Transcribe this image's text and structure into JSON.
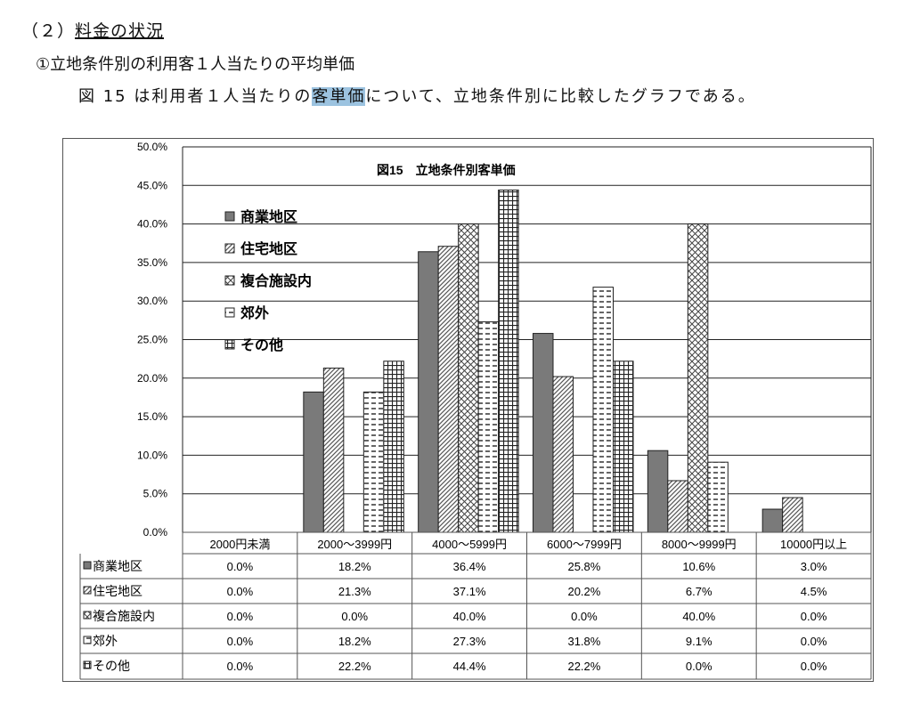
{
  "section_heading": {
    "number": "（２）",
    "title": "料金の状況"
  },
  "subheading": "①立地条件別の利用客１人当たりの平均単価",
  "paragraph": {
    "before": "図 15 は利用者１人当たりの",
    "highlight": "客単価",
    "after": "について、立地条件別に比較したグラフである。"
  },
  "chart_data": {
    "type": "bar",
    "title": "図15　立地条件別客単価",
    "categories": [
      "2000円未満",
      "2000～3999円",
      "4000～5999円",
      "6000～7999円",
      "8000～9999円",
      "10000円以上"
    ],
    "series": [
      {
        "name": "商業地区",
        "pattern": "solid-gray",
        "values": [
          0.0,
          18.2,
          36.4,
          25.8,
          10.6,
          3.0
        ],
        "labels": [
          "0.0%",
          "18.2%",
          "36.4%",
          "25.8%",
          "10.6%",
          "3.0%"
        ]
      },
      {
        "name": "住宅地区",
        "pattern": "diagonal-lines",
        "values": [
          0.0,
          21.3,
          37.1,
          20.2,
          6.7,
          4.5
        ],
        "labels": [
          "0.0%",
          "21.3%",
          "37.1%",
          "20.2%",
          "6.7%",
          "4.5%"
        ]
      },
      {
        "name": "複合施設内",
        "pattern": "crosshatch",
        "values": [
          0.0,
          0.0,
          40.0,
          0.0,
          40.0,
          0.0
        ],
        "labels": [
          "0.0%",
          "0.0%",
          "40.0%",
          "0.0%",
          "40.0%",
          "0.0%"
        ]
      },
      {
        "name": "郊外",
        "pattern": "dashes",
        "values": [
          0.0,
          18.2,
          27.3,
          31.8,
          9.1,
          0.0
        ],
        "labels": [
          "0.0%",
          "18.2%",
          "27.3%",
          "31.8%",
          "9.1%",
          "0.0%"
        ]
      },
      {
        "name": "その他",
        "pattern": "grid",
        "values": [
          0.0,
          22.2,
          44.4,
          22.2,
          0.0,
          0.0
        ],
        "labels": [
          "0.0%",
          "22.2%",
          "44.4%",
          "22.2%",
          "0.0%",
          "0.0%"
        ]
      }
    ],
    "yticks": [
      "0.0%",
      "5.0%",
      "10.0%",
      "15.0%",
      "20.0%",
      "25.0%",
      "30.0%",
      "35.0%",
      "40.0%",
      "45.0%",
      "50.0%"
    ],
    "ylim": [
      0,
      50
    ],
    "grid": true,
    "legend": "top-left",
    "data_table": true
  }
}
